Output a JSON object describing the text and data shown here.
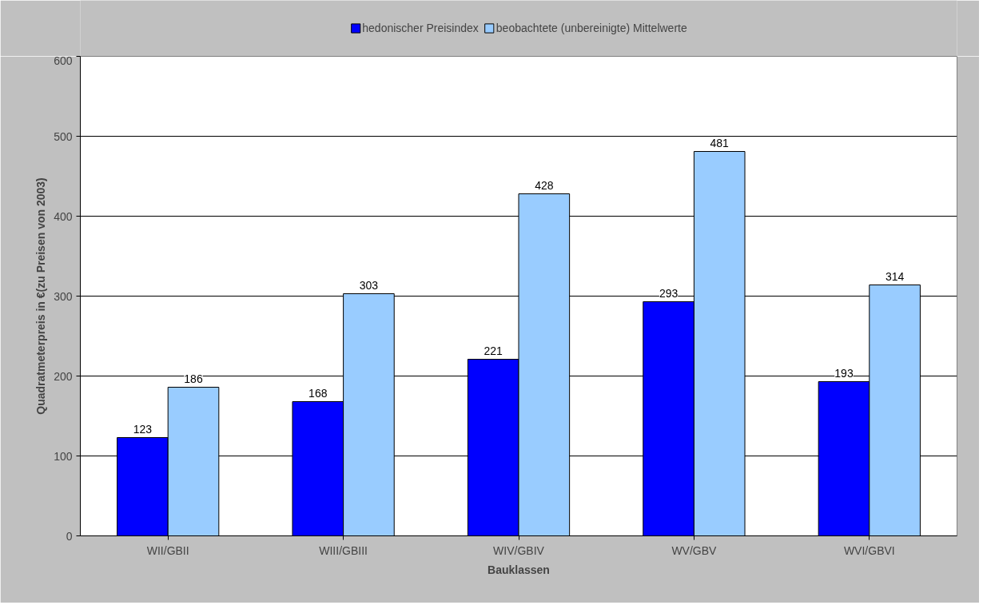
{
  "chart_data": {
    "type": "bar",
    "xlabel": "Bauklassen",
    "ylabel": "Quadratmeterpreis in €(zu Preisen von 2003)",
    "categories": [
      "WII/GBII",
      "WIII/GBIII",
      "WIV/GBIV",
      "WV/GBV",
      "WVI/GBVI"
    ],
    "series": [
      {
        "name": "hedonischer Preisindex",
        "color": "#0000ff",
        "values": [
          123,
          168,
          221,
          293,
          193
        ]
      },
      {
        "name": "beobachtete (unbereinigte) Mittelwerte",
        "color": "#99ccff",
        "values": [
          186,
          303,
          428,
          481,
          314
        ]
      }
    ],
    "ylim": [
      0,
      600
    ],
    "yticks": [
      0,
      100,
      200,
      300,
      400,
      500,
      600
    ],
    "grid": "y",
    "legend": "top",
    "data_labels": true
  }
}
